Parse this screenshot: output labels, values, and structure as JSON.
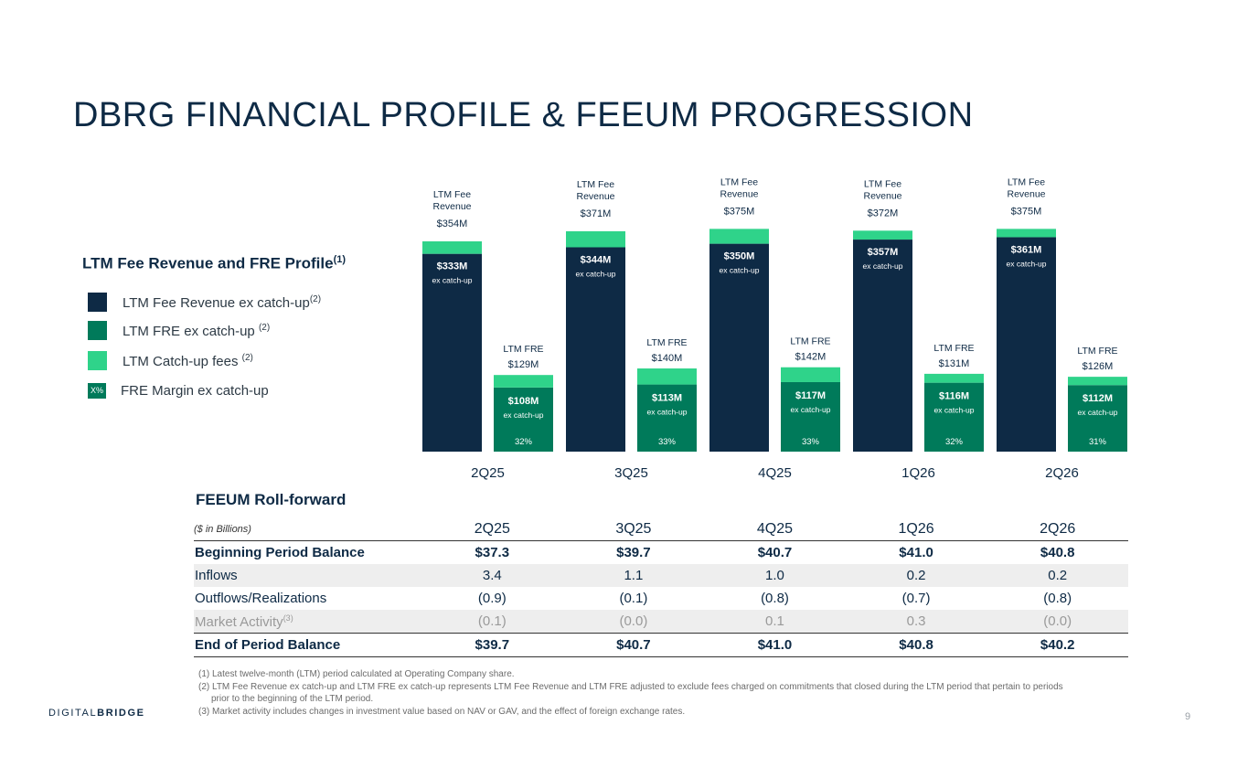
{
  "title": "DBRG FINANCIAL PROFILE & FEEUM PROGRESSION",
  "legend": {
    "title": "LTM Fee Revenue and FRE Profile",
    "title_sup": "(1)",
    "items": [
      {
        "label": "LTM Fee Revenue ex catch-up",
        "sup": "(2)",
        "color": "#0e2a45"
      },
      {
        "label": "LTM FRE ex catch-up ",
        "sup": "(2)",
        "color": "#007a5a"
      },
      {
        "label": "LTM Catch-up fees ",
        "sup": "(2)",
        "color": "#2fd38a"
      },
      {
        "label": "FRE Margin ex catch-up",
        "badge": "X%",
        "color": "#007a5a"
      }
    ]
  },
  "chart_data": {
    "type": "bar",
    "stacked": true,
    "categories": [
      "2Q25",
      "3Q25",
      "4Q25",
      "1Q26",
      "2Q26"
    ],
    "series": [
      {
        "name": "LTM Fee Revenue ex catch-up",
        "values": [
          333,
          344,
          350,
          357,
          361
        ],
        "color": "#0e2a45"
      },
      {
        "name": "LTM FRE ex catch-up",
        "values": [
          108,
          113,
          117,
          116,
          112
        ],
        "color": "#007a5a"
      },
      {
        "name": "LTM Catch-up fees",
        "color": "#2fd38a",
        "fee_values": [
          21,
          27,
          25,
          15,
          14
        ],
        "fre_values": [
          21,
          27,
          25,
          15,
          14
        ]
      }
    ],
    "fee_totals": [
      "$354M",
      "$371M",
      "$375M",
      "$372M",
      "$375M"
    ],
    "fre_totals": [
      "$129M",
      "$140M",
      "$142M",
      "$131M",
      "$126M"
    ],
    "fee_inner": [
      "$333M",
      "$344M",
      "$350M",
      "$357M",
      "$361M"
    ],
    "fre_inner": [
      "$108M",
      "$113M",
      "$117M",
      "$116M",
      "$112M"
    ],
    "fre_margin": [
      "32%",
      "33%",
      "33%",
      "32%",
      "31%"
    ],
    "fee_total_label": "LTM Fee Revenue",
    "fre_total_label": "LTM FRE",
    "inner_sub": "ex catch-up",
    "ylim": [
      0,
      385
    ]
  },
  "table": {
    "title": "FEEUM Roll-forward",
    "unit": "($ in Billions)",
    "columns": [
      "2Q25",
      "3Q25",
      "4Q25",
      "1Q26",
      "2Q26"
    ],
    "rows": [
      {
        "label": "Beginning Period Balance",
        "values": [
          "$37.3",
          "$39.7",
          "$40.7",
          "$41.0",
          "$40.8"
        ]
      },
      {
        "label": "Inflows",
        "values": [
          "3.4",
          "1.1",
          "1.0",
          "0.2",
          "0.2"
        ]
      },
      {
        "label": "Outflows/Realizations",
        "values": [
          "(0.9)",
          "(0.1)",
          "(0.8)",
          "(0.7)",
          "(0.8)"
        ]
      },
      {
        "label": "Market Activity",
        "sup": "(3)",
        "values": [
          "(0.1)",
          "(0.0)",
          "0.1",
          "0.3",
          "(0.0)"
        ]
      },
      {
        "label": "End of Period Balance",
        "values": [
          "$39.7",
          "$40.7",
          "$41.0",
          "$40.8",
          "$40.2"
        ]
      }
    ]
  },
  "footnotes": [
    "(1) Latest twelve-month (LTM) period calculated at Operating Company share.",
    "(2) LTM Fee Revenue ex catch-up and LTM FRE ex catch-up represents LTM Fee Revenue and LTM FRE adjusted to exclude fees charged on commitments that closed during the LTM period that pertain to periods",
    "prior to the beginning of the LTM period.",
    "(3) Market activity includes changes in investment value based on NAV or GAV, and the effect of foreign exchange rates."
  ],
  "logo": {
    "part1": "DIGITAL",
    "part2": "BRIDGE"
  },
  "page_number": "9"
}
